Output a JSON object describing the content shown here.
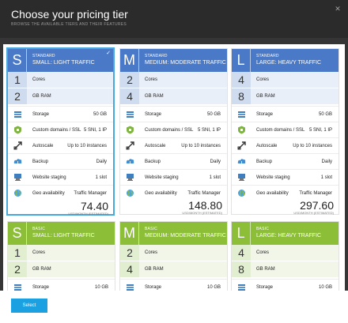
{
  "header": {
    "title": "Choose your pricing tier",
    "subtitle": "BROWSE THE AVAILABLE TIERS AND THEIR FEATURES"
  },
  "labels": {
    "cores": "Cores",
    "ram": "GB RAM",
    "storage": "Storage",
    "domains": "Custom domains / SSL",
    "autoscale": "Autoscale",
    "backup": "Backup",
    "staging": "Website staging",
    "geo": "Geo availability",
    "price_unit": "USD/MONTH (ESTIMATED)"
  },
  "standard_tiers": [
    {
      "letter": "S",
      "type": "STANDARD",
      "name": "SMALL: LIGHT TRAFFIC",
      "cores": "1",
      "ram": "2",
      "storage": "50 GB",
      "domains": "5 SNI, 1 IP",
      "autoscale": "Up to 10 instances",
      "backup": "Daily",
      "staging": "1 slot",
      "geo": "Traffic Manager",
      "price": "74.40"
    },
    {
      "letter": "M",
      "type": "STANDARD",
      "name": "MEDIUM: MODERATE TRAFFIC",
      "cores": "2",
      "ram": "4",
      "storage": "50 GB",
      "domains": "5 SNI, 1 IP",
      "autoscale": "Up to 10 instances",
      "backup": "Daily",
      "staging": "1 slot",
      "geo": "Traffic Manager",
      "price": "148.80"
    },
    {
      "letter": "L",
      "type": "STANDARD",
      "name": "LARGE: HEAVY TRAFFIC",
      "cores": "4",
      "ram": "8",
      "storage": "50 GB",
      "domains": "5 SNI, 1 IP",
      "autoscale": "Up to 10 instances",
      "backup": "Daily",
      "staging": "1 slot",
      "geo": "Traffic Manager",
      "price": "297.60"
    }
  ],
  "basic_tiers": [
    {
      "letter": "S",
      "type": "BASIC",
      "name": "SMALL: LIGHT TRAFFIC",
      "cores": "1",
      "ram": "2",
      "storage": "10 GB"
    },
    {
      "letter": "M",
      "type": "BASIC",
      "name": "MEDIUM: MODERATE TRAFFIC",
      "cores": "2",
      "ram": "4",
      "storage": "10 GB"
    },
    {
      "letter": "L",
      "type": "BASIC",
      "name": "LARGE: HEAVY TRAFFIC",
      "cores": "4",
      "ram": "8",
      "storage": "10 GB"
    }
  ],
  "footer": {
    "select_label": "Select"
  },
  "colors": {
    "standard": "#4a79c7",
    "basic": "#8cbe38",
    "accent": "#1ba1e2"
  },
  "icons": [
    "storage-icon",
    "ssl-shield-icon",
    "autoscale-icon",
    "backup-icon",
    "staging-icon",
    "globe-icon"
  ]
}
